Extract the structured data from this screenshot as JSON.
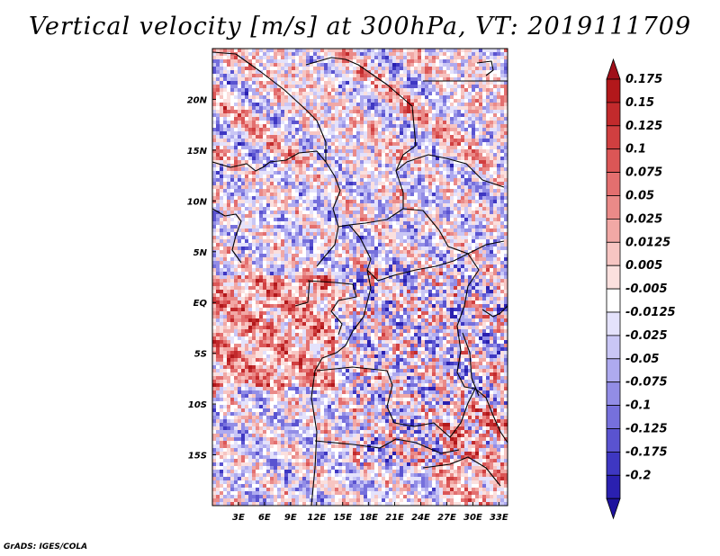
{
  "title": "Vertical velocity [m/s] at 300hPa, VT: 2019111709",
  "credit": "GrADS: IGES/COLA",
  "map": {
    "lon_range": [
      0,
      34
    ],
    "lat_range": [
      -20,
      25
    ],
    "lon_ticks": [
      {
        "value": 3,
        "label": "3E"
      },
      {
        "value": 6,
        "label": "6E"
      },
      {
        "value": 9,
        "label": "9E"
      },
      {
        "value": 12,
        "label": "12E"
      },
      {
        "value": 15,
        "label": "15E"
      },
      {
        "value": 18,
        "label": "18E"
      },
      {
        "value": 21,
        "label": "21E"
      },
      {
        "value": 24,
        "label": "24E"
      },
      {
        "value": 27,
        "label": "27E"
      },
      {
        "value": 30,
        "label": "30E"
      },
      {
        "value": 33,
        "label": "33E"
      }
    ],
    "lat_ticks": [
      {
        "value": 20,
        "label": "20N"
      },
      {
        "value": 15,
        "label": "15N"
      },
      {
        "value": 10,
        "label": "10N"
      },
      {
        "value": 5,
        "label": "5N"
      },
      {
        "value": 0,
        "label": "EQ"
      },
      {
        "value": -5,
        "label": "5S"
      },
      {
        "value": -10,
        "label": "10S"
      },
      {
        "value": -15,
        "label": "15S"
      }
    ]
  },
  "colorbar": {
    "levels": [
      {
        "label": "0.175",
        "color": "#b2181b"
      },
      {
        "label": "0.15",
        "color": "#c22a2c"
      },
      {
        "label": "0.125",
        "color": "#d03f40"
      },
      {
        "label": "0.1",
        "color": "#db5656"
      },
      {
        "label": "0.075",
        "color": "#e36f6f"
      },
      {
        "label": "0.05",
        "color": "#ea8a88"
      },
      {
        "label": "0.025",
        "color": "#f1a8a5"
      },
      {
        "label": "0.0125",
        "color": "#f7c5c2"
      },
      {
        "label": "0.005",
        "color": "#fbe0de"
      },
      {
        "label": "-0.005",
        "color": "#ffffff"
      },
      {
        "label": "-0.0125",
        "color": "#e4e2fb"
      },
      {
        "label": "-0.025",
        "color": "#c9c6f5"
      },
      {
        "label": "-0.05",
        "color": "#aeaaef"
      },
      {
        "label": "-0.075",
        "color": "#928de6"
      },
      {
        "label": "-0.1",
        "color": "#7670dc"
      },
      {
        "label": "-0.125",
        "color": "#5a53d0"
      },
      {
        "label": "-0.175",
        "color": "#3e37c2"
      },
      {
        "label": "-0.2",
        "color": "#2a20b0"
      }
    ],
    "top_arrow_color": "#a0101a",
    "bottom_arrow_color": "#1e129e"
  }
}
